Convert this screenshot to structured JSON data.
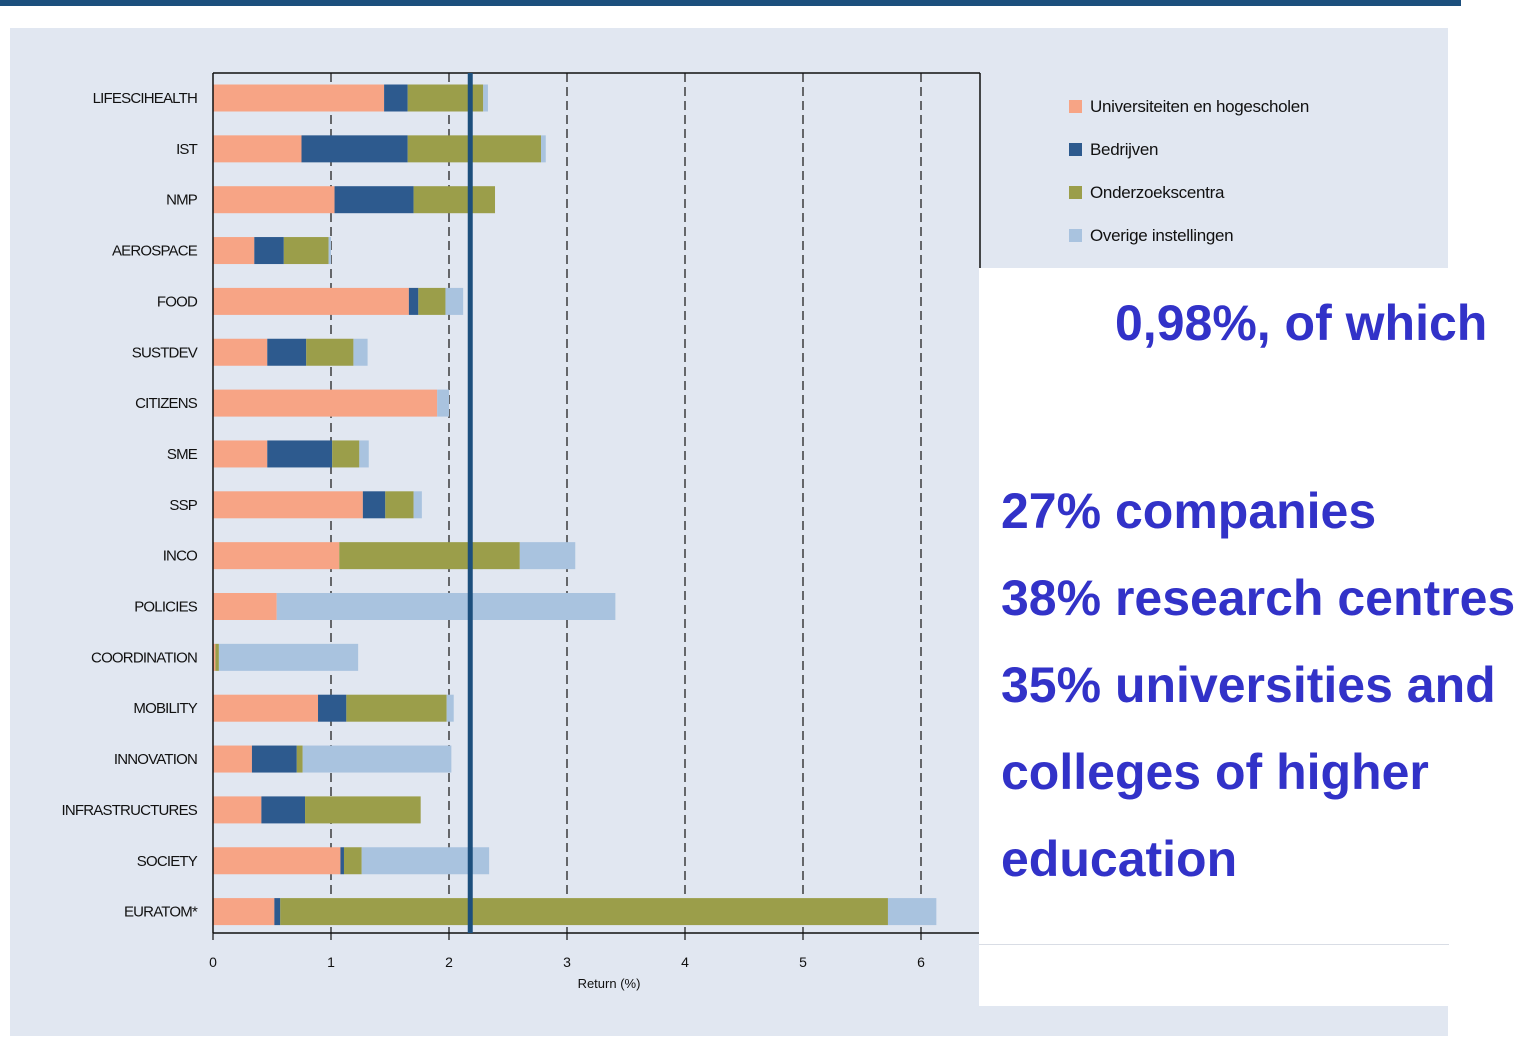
{
  "chart_data": {
    "type": "bar",
    "orientation": "horizontal",
    "stacked": true,
    "categories": [
      "LIFESCIHEALTH",
      "IST",
      "NMP",
      "AEROSPACE",
      "FOOD",
      "SUSTDEV",
      "CITIZENS",
      "SME",
      "SSP",
      "INCO",
      "POLICIES",
      "COORDINATION",
      "MOBILITY",
      "INNOVATION",
      "INFRASTRUCTURES",
      "SOCIETY",
      "EURATOM*"
    ],
    "series": [
      {
        "name": "Universiteiten en hogescholen",
        "color": "#f7a485",
        "values": [
          1.45,
          0.75,
          1.03,
          0.35,
          1.66,
          0.46,
          1.9,
          0.46,
          1.27,
          1.07,
          0.54,
          0.02,
          0.89,
          0.33,
          0.41,
          1.08,
          0.52
        ]
      },
      {
        "name": "Bedrijven",
        "color": "#2d5a8e",
        "values": [
          0.2,
          0.9,
          0.67,
          0.25,
          0.08,
          0.33,
          0.0,
          0.55,
          0.19,
          0.0,
          0.0,
          0.0,
          0.24,
          0.38,
          0.37,
          0.03,
          0.05
        ]
      },
      {
        "name": "Onderzoekscentra",
        "color": "#9b9e4a",
        "values": [
          0.64,
          1.13,
          0.69,
          0.38,
          0.23,
          0.4,
          0.0,
          0.23,
          0.24,
          1.53,
          0.0,
          0.03,
          0.85,
          0.05,
          0.98,
          0.15,
          5.15
        ]
      },
      {
        "name": "Overige instellingen",
        "color": "#a9c3df",
        "values": [
          0.04,
          0.04,
          0.0,
          0.02,
          0.15,
          0.12,
          0.1,
          0.08,
          0.07,
          0.47,
          2.87,
          1.18,
          0.06,
          1.26,
          0.0,
          1.08,
          0.41
        ]
      }
    ],
    "xlabel": "Return (%)",
    "xlim": [
      0,
      6.5
    ],
    "xticks": [
      "0",
      "1",
      "2",
      "3",
      "4",
      "5",
      "6"
    ],
    "grid": "vertical dashed",
    "reference_line": {
      "x": 2.18,
      "color": "#1c4f7d"
    },
    "legend": "top-right"
  },
  "overlay": {
    "line1": "0,98%, of which",
    "line2": "27% companies",
    "line3": "38% research centres",
    "line4": "35% universities and",
    "line5": "colleges of higher",
    "line6": "education"
  }
}
